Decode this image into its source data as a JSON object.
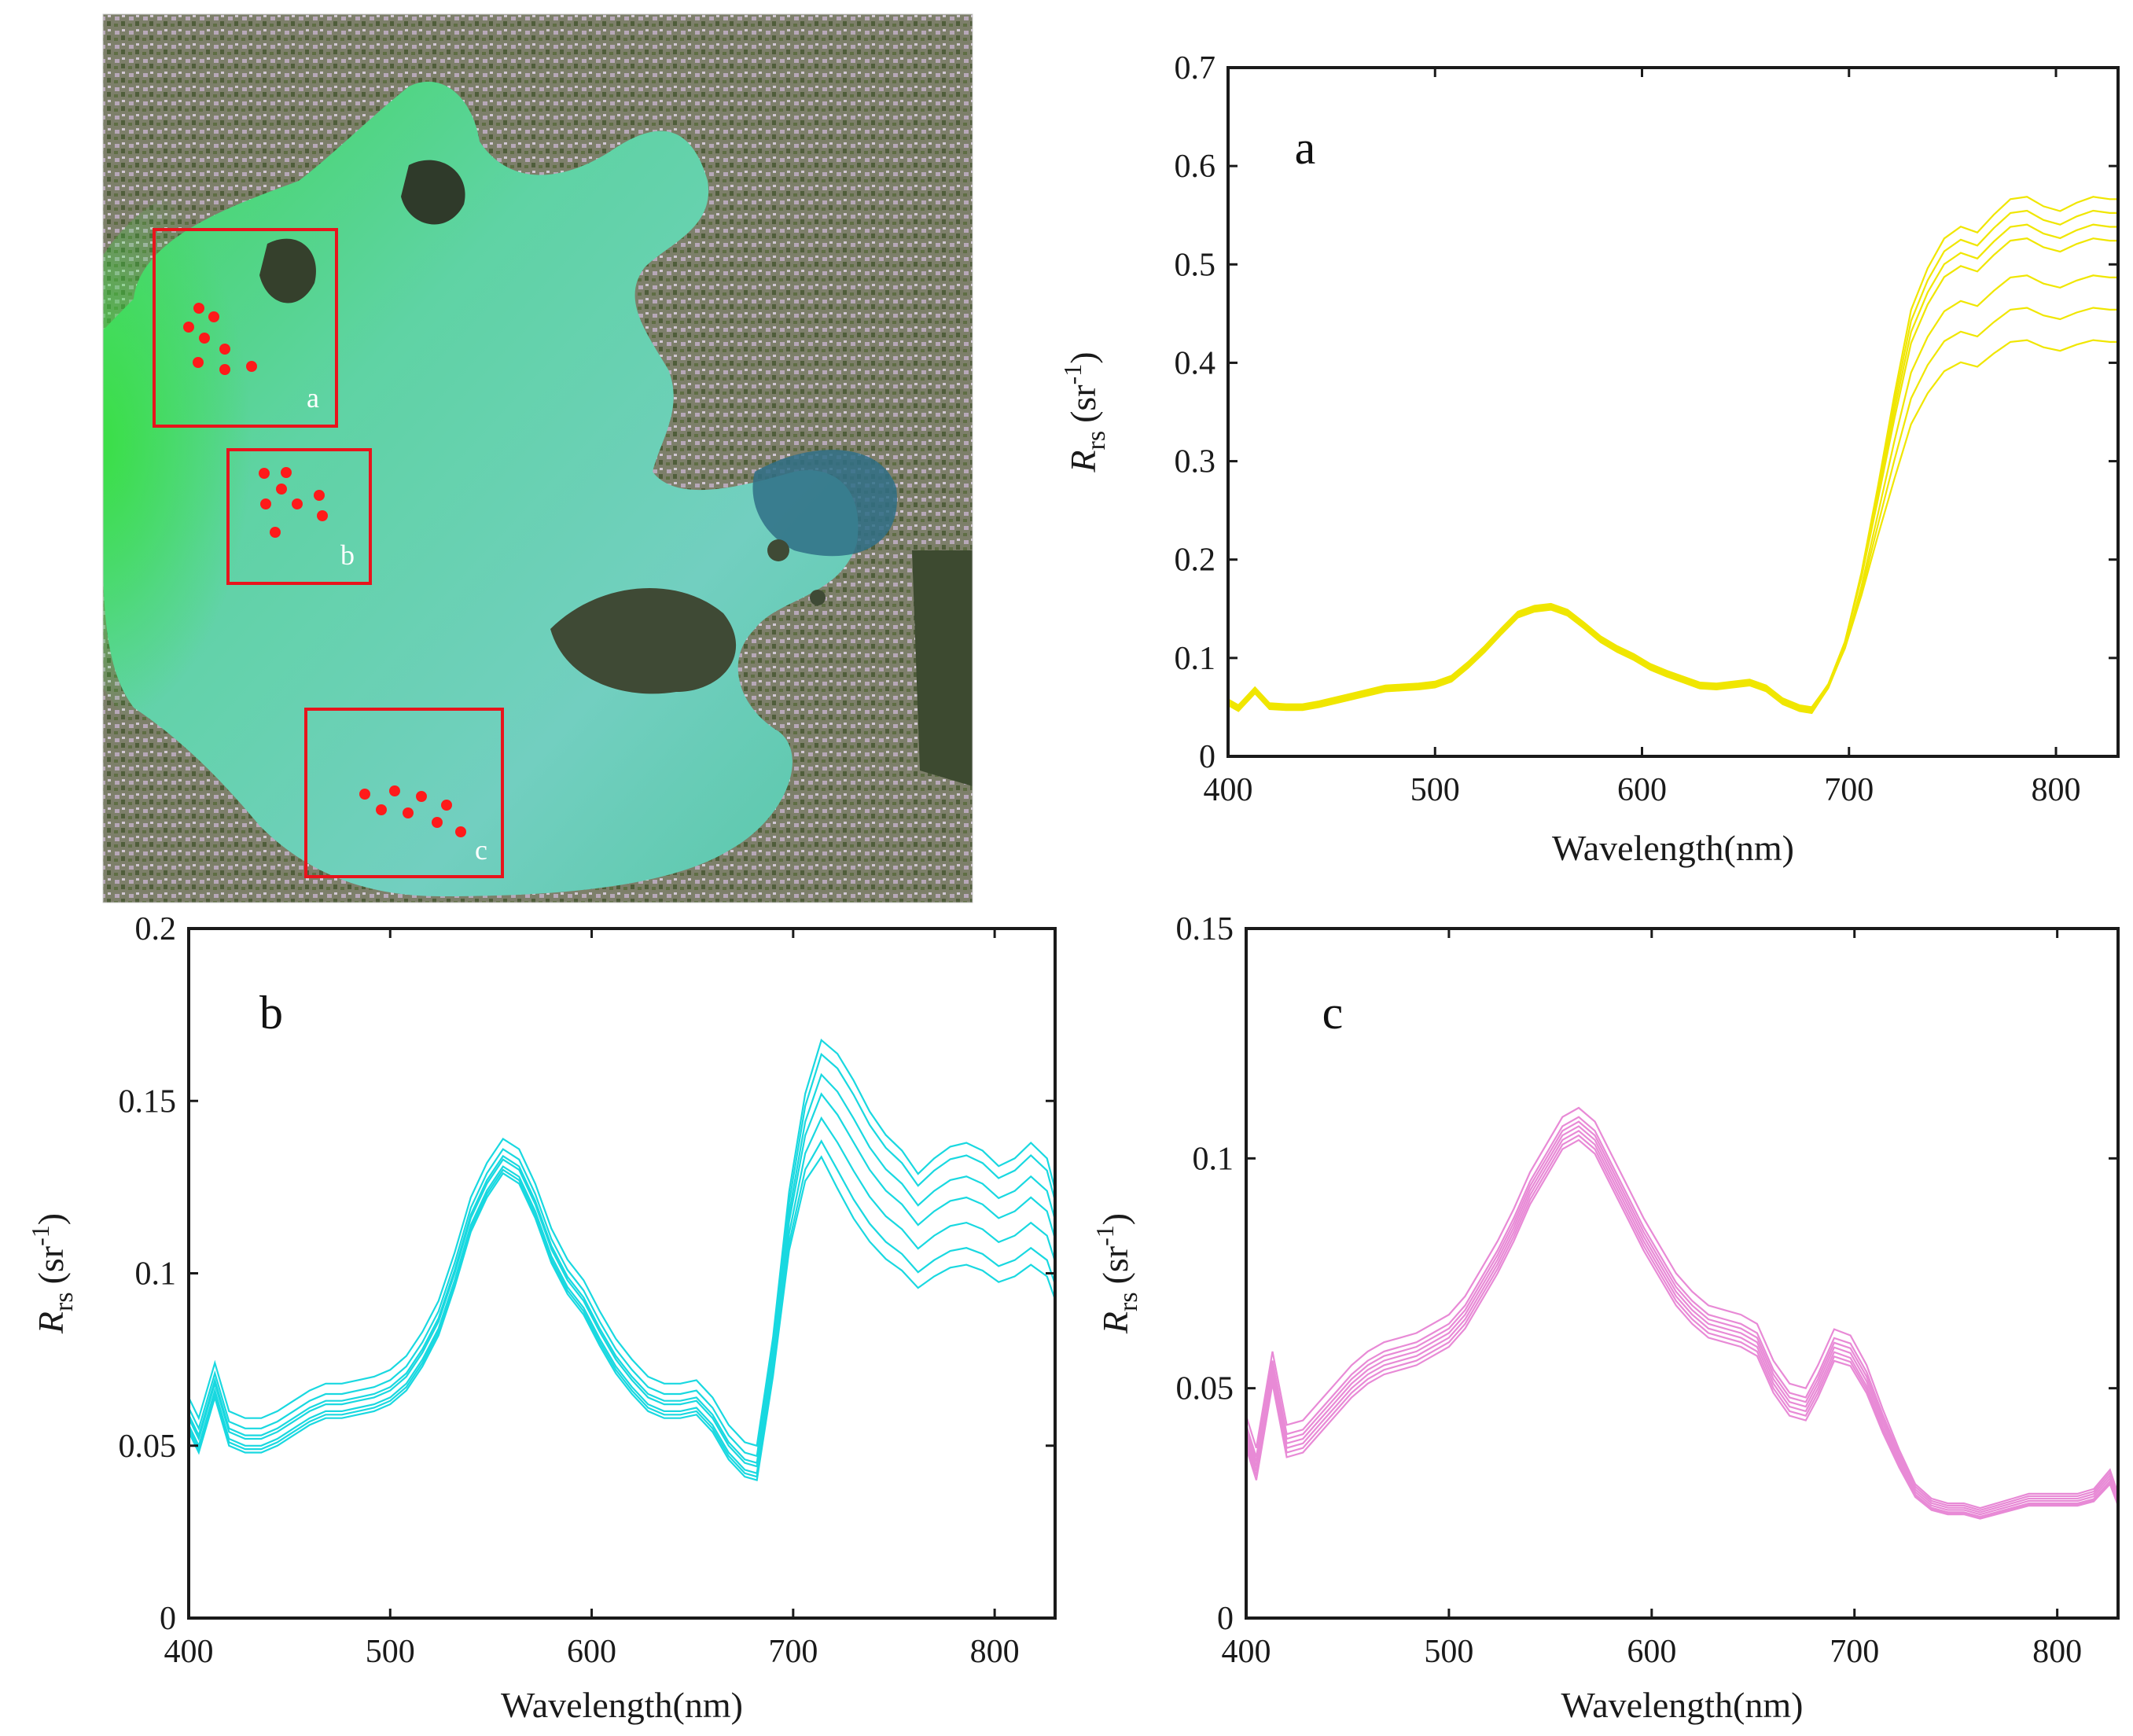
{
  "satellite_map": {
    "box_labels": [
      "a",
      "b",
      "c"
    ],
    "box_color": "#e8141c",
    "point_color": "#ff1a1a",
    "water_color": "#5fd0a8",
    "bloom_color": "#44d64e",
    "land_color": "#8e8a7a"
  },
  "chart_data": [
    {
      "id": "a",
      "type": "line",
      "panel_label": "a",
      "xlabel": "Wavelength(nm)",
      "ylabel_main": "R",
      "ylabel_sub": "rs",
      "ylabel_unit_pre": "(sr",
      "ylabel_unit_sup": "-1",
      "ylabel_unit_post": ")",
      "xlim": [
        400,
        830
      ],
      "ylim": [
        0,
        0.7
      ],
      "xticks": [
        400,
        500,
        600,
        700,
        800
      ],
      "xtick_labels": [
        "400",
        "500",
        "600",
        "700",
        "800"
      ],
      "yticks": [
        0,
        0.1,
        0.2,
        0.3,
        0.4,
        0.5,
        0.6,
        0.7
      ],
      "ytick_labels": [
        "0",
        "0.1",
        "0.2",
        "0.3",
        "0.4",
        "0.5",
        "0.6",
        "0.7"
      ],
      "color": "#f0e600",
      "x": [
        400,
        405,
        413,
        420,
        428,
        436,
        444,
        452,
        460,
        468,
        476,
        484,
        492,
        500,
        508,
        516,
        524,
        532,
        540,
        548,
        556,
        564,
        572,
        580,
        588,
        596,
        604,
        612,
        620,
        628,
        636,
        644,
        652,
        660,
        668,
        676,
        682,
        690,
        698,
        706,
        714,
        722,
        730,
        738,
        746,
        754,
        762,
        770,
        778,
        786,
        794,
        802,
        810,
        818,
        826,
        830
      ],
      "base": [
        0.054,
        0.048,
        0.066,
        0.05,
        0.049,
        0.049,
        0.052,
        0.056,
        0.06,
        0.064,
        0.068,
        0.069,
        0.07,
        0.072,
        0.078,
        0.092,
        0.108,
        0.126,
        0.143,
        0.149,
        0.151,
        0.145,
        0.132,
        0.118,
        0.108,
        0.1,
        0.09,
        0.083,
        0.077,
        0.071,
        0.07,
        0.072,
        0.074,
        0.068,
        0.055,
        0.048,
        0.046,
        0.07,
        0.11,
        0.17,
        0.24,
        0.31,
        0.375,
        0.41,
        0.435,
        0.445,
        0.44,
        0.455,
        0.468,
        0.47,
        0.462,
        0.458,
        0.465,
        0.47,
        0.468,
        0.468
      ],
      "nir_scale": [
        1.21,
        1.18,
        1.15,
        1.12,
        1.04,
        0.97,
        0.9
      ],
      "vis_offset": [
        -0.002,
        0.0,
        0.002,
        0.003,
        -0.001,
        0.001,
        0.004
      ],
      "series_count": 7
    },
    {
      "id": "b",
      "type": "line",
      "panel_label": "b",
      "xlabel": "Wavelength(nm)",
      "ylabel_main": "R",
      "ylabel_sub": "rs",
      "ylabel_unit_pre": "(sr",
      "ylabel_unit_sup": "-1",
      "ylabel_unit_post": ")",
      "xlim": [
        400,
        830
      ],
      "ylim": [
        0,
        0.2
      ],
      "xticks": [
        400,
        500,
        600,
        700,
        800
      ],
      "xtick_labels": [
        "400",
        "500",
        "600",
        "700",
        "800"
      ],
      "yticks": [
        0,
        0.05,
        0.1,
        0.15,
        0.2
      ],
      "ytick_labels": [
        "0",
        "0.05",
        "0.1",
        "0.15",
        "0.2"
      ],
      "color": "#19d8e0",
      "x": [
        400,
        405,
        413,
        420,
        428,
        436,
        444,
        452,
        460,
        468,
        476,
        484,
        492,
        500,
        508,
        516,
        524,
        532,
        540,
        548,
        556,
        564,
        572,
        580,
        588,
        596,
        604,
        612,
        620,
        628,
        636,
        644,
        652,
        660,
        668,
        676,
        682,
        690,
        698,
        706,
        714,
        722,
        730,
        738,
        746,
        754,
        762,
        770,
        778,
        786,
        794,
        802,
        810,
        818,
        826,
        830
      ],
      "base": [
        0.058,
        0.052,
        0.068,
        0.054,
        0.052,
        0.052,
        0.054,
        0.057,
        0.06,
        0.062,
        0.062,
        0.063,
        0.064,
        0.066,
        0.07,
        0.077,
        0.086,
        0.1,
        0.116,
        0.126,
        0.133,
        0.13,
        0.12,
        0.107,
        0.098,
        0.092,
        0.083,
        0.075,
        0.069,
        0.064,
        0.062,
        0.062,
        0.063,
        0.058,
        0.05,
        0.045,
        0.044,
        0.075,
        0.115,
        0.14,
        0.152,
        0.146,
        0.138,
        0.13,
        0.124,
        0.12,
        0.114,
        0.118,
        0.121,
        0.122,
        0.12,
        0.116,
        0.118,
        0.122,
        0.118,
        0.11
      ],
      "nir_scale": [
        1.13,
        1.1,
        1.05,
        1.0,
        0.94,
        0.88,
        0.84
      ],
      "vis_offset": [
        0.006,
        0.003,
        0.001,
        0.0,
        -0.002,
        -0.003,
        -0.004
      ],
      "series_count": 7
    },
    {
      "id": "c",
      "type": "line",
      "panel_label": "c",
      "xlabel": "Wavelength(nm)",
      "ylabel_main": "R",
      "ylabel_sub": "rs",
      "ylabel_unit_pre": "(sr",
      "ylabel_unit_sup": "-1",
      "ylabel_unit_post": ")",
      "xlim": [
        400,
        830
      ],
      "ylim": [
        0,
        0.15
      ],
      "xticks": [
        400,
        500,
        600,
        700,
        800
      ],
      "xtick_labels": [
        "400",
        "500",
        "600",
        "700",
        "800"
      ],
      "yticks": [
        0,
        0.05,
        0.1,
        0.15
      ],
      "ytick_labels": [
        "0",
        "0.05",
        "0.1",
        "0.15"
      ],
      "color": "#e88ad6",
      "x": [
        400,
        405,
        413,
        420,
        428,
        436,
        444,
        452,
        460,
        468,
        476,
        484,
        492,
        500,
        508,
        516,
        524,
        532,
        540,
        548,
        556,
        564,
        572,
        580,
        588,
        596,
        604,
        612,
        620,
        628,
        636,
        644,
        652,
        660,
        668,
        676,
        682,
        690,
        698,
        706,
        714,
        722,
        730,
        738,
        746,
        754,
        762,
        770,
        778,
        786,
        794,
        802,
        810,
        818,
        826,
        830
      ],
      "base": [
        0.04,
        0.033,
        0.054,
        0.038,
        0.039,
        0.043,
        0.047,
        0.051,
        0.054,
        0.056,
        0.057,
        0.058,
        0.06,
        0.062,
        0.066,
        0.072,
        0.078,
        0.085,
        0.093,
        0.099,
        0.105,
        0.107,
        0.104,
        0.097,
        0.09,
        0.083,
        0.077,
        0.071,
        0.067,
        0.064,
        0.063,
        0.062,
        0.06,
        0.052,
        0.047,
        0.046,
        0.051,
        0.059,
        0.058,
        0.052,
        0.043,
        0.035,
        0.028,
        0.025,
        0.024,
        0.024,
        0.023,
        0.024,
        0.025,
        0.026,
        0.026,
        0.026,
        0.026,
        0.027,
        0.031,
        0.026
      ],
      "nir_scale": [
        1.04,
        1.02,
        1.0,
        0.98,
        0.96,
        0.95,
        0.94
      ],
      "vis_offset": [
        0.004,
        0.002,
        0.001,
        0.0,
        -0.001,
        -0.002,
        -0.003
      ],
      "series_count": 7
    }
  ]
}
